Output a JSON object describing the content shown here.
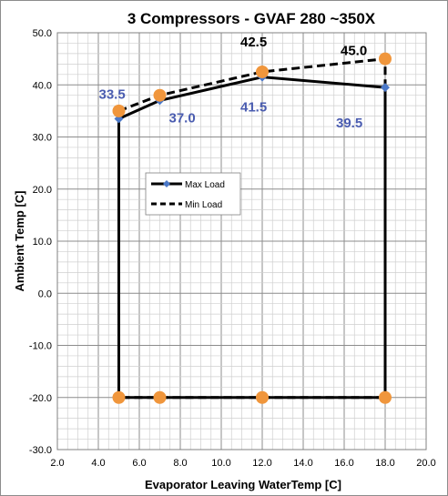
{
  "chart_data": {
    "type": "line",
    "title": "3 Compressors - GVAF 280 ~350X",
    "xlabel": "Evaporator Leaving WaterTemp [C]",
    "ylabel": "Ambient Temp [C]",
    "xlim": [
      2.0,
      20.0
    ],
    "ylim": [
      -30.0,
      50.0
    ],
    "xticks": [
      "2.0",
      "4.0",
      "6.0",
      "8.0",
      "10.0",
      "12.0",
      "14.0",
      "16.0",
      "18.0",
      "20.0"
    ],
    "yticks": [
      "-30.0",
      "-20.0",
      "-10.0",
      "0.0",
      "10.0",
      "20.0",
      "30.0",
      "40.0",
      "50.0"
    ],
    "grid": true,
    "legend_placement": "center-left",
    "series": [
      {
        "name": "Max Load",
        "style": "solid",
        "color": "#000000",
        "marker": "diamond",
        "marker_color": "#4a78c8",
        "x": [
          5,
          7,
          12,
          18,
          18,
          12,
          7,
          5,
          5
        ],
        "y": [
          33.5,
          37.0,
          41.5,
          39.5,
          -20,
          -20,
          -20,
          -20,
          33.5
        ]
      },
      {
        "name": "Min Load",
        "style": "dashed",
        "color": "#000000",
        "marker": "circle",
        "marker_color": "#f0963c",
        "x": [
          5,
          7,
          12,
          18,
          18,
          12,
          7,
          5,
          5
        ],
        "y": [
          35.0,
          38.0,
          42.5,
          45.0,
          -20,
          -20,
          -20,
          -20,
          35.0
        ]
      }
    ],
    "annotations": [
      {
        "text": "33.5",
        "x": 5,
        "y": 33.5,
        "color": "blue"
      },
      {
        "text": "37.0",
        "x": 7,
        "y": 37.0,
        "color": "blue"
      },
      {
        "text": "41.5",
        "x": 12,
        "y": 41.5,
        "color": "blue"
      },
      {
        "text": "39.5",
        "x": 18,
        "y": 39.5,
        "color": "blue"
      },
      {
        "text": "42.5",
        "x": 12,
        "y": 42.5,
        "color": "black"
      },
      {
        "text": "45.0",
        "x": 18,
        "y": 45.0,
        "color": "black"
      }
    ]
  }
}
